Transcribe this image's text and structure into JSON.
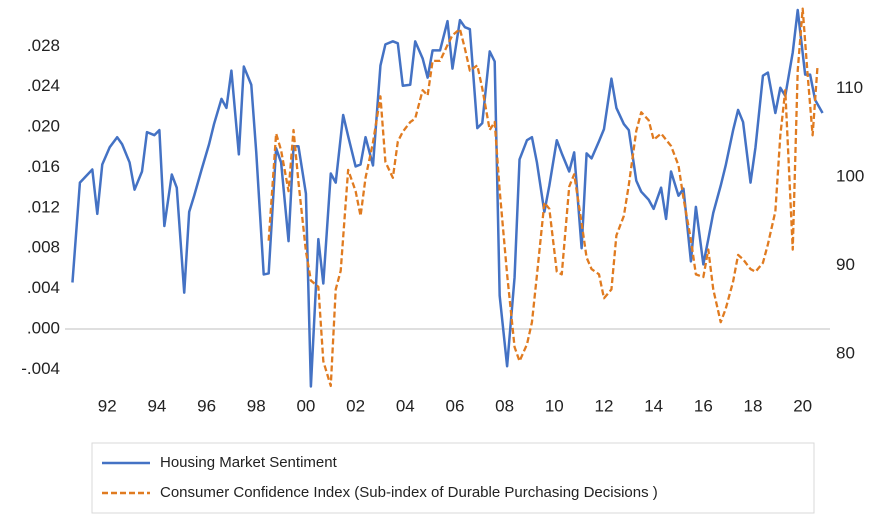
{
  "chart_data": {
    "type": "line",
    "xlim": [
      1990.3,
      2021.1
    ],
    "xticks": [
      {
        "value": 1992,
        "label": "92"
      },
      {
        "value": 1994,
        "label": "94"
      },
      {
        "value": 1996,
        "label": "96"
      },
      {
        "value": 1998,
        "label": "98"
      },
      {
        "value": 2000,
        "label": "00"
      },
      {
        "value": 2002,
        "label": "02"
      },
      {
        "value": 2004,
        "label": "04"
      },
      {
        "value": 2006,
        "label": "06"
      },
      {
        "value": 2008,
        "label": "08"
      },
      {
        "value": 2010,
        "label": "10"
      },
      {
        "value": 2012,
        "label": "12"
      },
      {
        "value": 2014,
        "label": "14"
      },
      {
        "value": 2016,
        "label": "16"
      },
      {
        "value": 2018,
        "label": "18"
      },
      {
        "value": 2020,
        "label": "20"
      }
    ],
    "ylim": [
      -0.006,
      0.032
    ],
    "yticks": [
      {
        "value": -0.004,
        "label": "-.004"
      },
      {
        "value": 0,
        "label": ".000"
      },
      {
        "value": 0.004,
        "label": ".004"
      },
      {
        "value": 0.008,
        "label": ".008"
      },
      {
        "value": 0.012,
        "label": ".012"
      },
      {
        "value": 0.016,
        "label": ".016"
      },
      {
        "value": 0.02,
        "label": ".020"
      },
      {
        "value": 0.024,
        "label": ".024"
      },
      {
        "value": 0.028,
        "label": ".028"
      }
    ],
    "y2lim": [
      76,
      119.3
    ],
    "y2ticks": [
      80,
      90,
      100,
      110
    ],
    "grid": false,
    "legend": "bottom",
    "series": [
      {
        "name": "Housing Market Sentiment",
        "color": "#4472c4",
        "style": "solid",
        "x": [
          1990.6,
          1990.9,
          1991.4,
          1991.6,
          1991.8,
          1992.1,
          1992.4,
          1992.6,
          1992.9,
          1993.1,
          1993.4,
          1993.6,
          1993.9,
          1994.1,
          1994.3,
          1994.6,
          1994.8,
          1995.1,
          1995.3,
          1995.5,
          1995.8,
          1996.1,
          1996.3,
          1996.6,
          1996.8,
          1997.0,
          1997.3,
          1997.5,
          1997.8,
          1998.0,
          1998.3,
          1998.5,
          1998.8,
          1999.0,
          1999.3,
          1999.5,
          1999.7,
          2000.0,
          2000.2,
          2000.5,
          2000.7,
          2001.0,
          2001.2,
          2001.5,
          2001.7,
          2002.0,
          2002.2,
          2002.4,
          2002.7,
          2003.0,
          2003.2,
          2003.5,
          2003.7,
          2003.9,
          2004.2,
          2004.4,
          2004.7,
          2004.9,
          2005.1,
          2005.4,
          2005.7,
          2005.9,
          2006.2,
          2006.4,
          2006.6,
          2006.9,
          2007.1,
          2007.4,
          2007.6,
          2007.8,
          2008.1,
          2008.4,
          2008.6,
          2008.9,
          2009.1,
          2009.3,
          2009.6,
          2009.8,
          2010.1,
          2010.3,
          2010.6,
          2010.8,
          2011.1,
          2011.3,
          2011.5,
          2011.8,
          2012.0,
          2012.3,
          2012.5,
          2012.8,
          2013.0,
          2013.3,
          2013.5,
          2013.8,
          2014.0,
          2014.3,
          2014.5,
          2014.7,
          2015.0,
          2015.2,
          2015.5,
          2015.7,
          2016.0,
          2016.2,
          2016.4,
          2016.7,
          2016.9,
          2017.2,
          2017.4,
          2017.6,
          2017.9,
          2018.1,
          2018.4,
          2018.6,
          2018.9,
          2019.1,
          2019.3,
          2019.6,
          2019.8,
          2020.1,
          2020.3,
          2020.5,
          2020.8
        ],
        "values": [
          0.0046,
          0.0145,
          0.0158,
          0.0114,
          0.0163,
          0.018,
          0.019,
          0.0183,
          0.0165,
          0.0138,
          0.0156,
          0.0195,
          0.0192,
          0.0197,
          0.0102,
          0.0153,
          0.014,
          0.0036,
          0.0116,
          0.0132,
          0.0158,
          0.0183,
          0.0203,
          0.0228,
          0.0219,
          0.0256,
          0.0173,
          0.026,
          0.0242,
          0.0175,
          0.0054,
          0.0055,
          0.0179,
          0.0165,
          0.0087,
          0.0181,
          0.0181,
          0.0134,
          -0.0057,
          0.0089,
          0.0045,
          0.0154,
          0.0145,
          0.0212,
          0.0191,
          0.0161,
          0.0163,
          0.019,
          0.0162,
          0.0261,
          0.0282,
          0.0285,
          0.0283,
          0.0241,
          0.0242,
          0.0285,
          0.0268,
          0.0249,
          0.0276,
          0.0276,
          0.0305,
          0.0258,
          0.0306,
          0.0299,
          0.0297,
          0.0199,
          0.0204,
          0.0275,
          0.0265,
          0.0033,
          -0.0037,
          0.0051,
          0.0168,
          0.0187,
          0.019,
          0.0165,
          0.0116,
          0.0142,
          0.0187,
          0.0174,
          0.0156,
          0.0175,
          0.008,
          0.0174,
          0.0169,
          0.0186,
          0.0198,
          0.0248,
          0.0219,
          0.0203,
          0.0197,
          0.0147,
          0.0136,
          0.0128,
          0.0119,
          0.014,
          0.0109,
          0.0156,
          0.0132,
          0.0139,
          0.0067,
          0.0121,
          0.0064,
          0.0089,
          0.0115,
          0.0142,
          0.0162,
          0.0197,
          0.0217,
          0.0205,
          0.0145,
          0.018,
          0.0251,
          0.0254,
          0.0214,
          0.0239,
          0.0231,
          0.0274,
          0.0316,
          0.0252,
          0.0252,
          0.0227,
          0.0214
        ]
      },
      {
        "name": "Consumer Confidence Index (Sub-index of Durable Purchasing Decisions )",
        "color": "#e07b20",
        "style": "dashed",
        "axis": "y2",
        "x": [
          1998.5,
          1998.8,
          1999.0,
          1999.3,
          1999.5,
          1999.7,
          2000.0,
          2000.2,
          2000.5,
          2000.7,
          2001.0,
          2001.2,
          2001.4,
          2001.7,
          2002.0,
          2002.2,
          2002.4,
          2002.7,
          2003.0,
          2003.2,
          2003.5,
          2003.7,
          2003.9,
          2004.2,
          2004.4,
          2004.7,
          2004.9,
          2005.1,
          2005.4,
          2005.7,
          2005.9,
          2006.2,
          2006.4,
          2006.6,
          2006.9,
          2007.1,
          2007.4,
          2007.6,
          2007.8,
          2008.1,
          2008.4,
          2008.6,
          2008.9,
          2009.1,
          2009.3,
          2009.6,
          2009.8,
          2010.1,
          2010.3,
          2010.6,
          2010.8,
          2011.1,
          2011.3,
          2011.5,
          2011.8,
          2012.0,
          2012.3,
          2012.5,
          2012.8,
          2013.0,
          2013.3,
          2013.5,
          2013.8,
          2014.0,
          2014.3,
          2014.5,
          2014.7,
          2015.0,
          2015.2,
          2015.5,
          2015.7,
          2016.0,
          2016.2,
          2016.4,
          2016.7,
          2016.9,
          2017.2,
          2017.4,
          2017.6,
          2017.9,
          2018.1,
          2018.4,
          2018.6,
          2018.9,
          2019.1,
          2019.3,
          2019.6,
          2019.8,
          2020.0,
          2020.2,
          2020.4,
          2020.6
        ],
        "values": [
          92.8,
          104.9,
          103.0,
          98.4,
          105.3,
          99.4,
          91.6,
          88.3,
          87.6,
          79.2,
          76.4,
          87.3,
          89.4,
          100.8,
          98.4,
          95.6,
          99.9,
          103.9,
          109.1,
          101.7,
          99.9,
          104.0,
          105.1,
          106.2,
          106.6,
          109.8,
          109.2,
          113.1,
          113.1,
          114.9,
          116.0,
          116.7,
          114.5,
          112.0,
          112.6,
          110.0,
          105.3,
          106.2,
          98.5,
          89.0,
          80.8,
          79.2,
          81.1,
          83.6,
          88.9,
          97.1,
          96.4,
          89.3,
          89.0,
          98.9,
          100.3,
          94.8,
          90.9,
          89.6,
          89.0,
          86.3,
          87.3,
          93.4,
          95.6,
          99.1,
          105.2,
          107.3,
          106.4,
          104.2,
          104.9,
          104.2,
          103.5,
          101.3,
          97.6,
          92.9,
          89.0,
          88.7,
          91.8,
          87.3,
          83.6,
          85.1,
          88.2,
          91.2,
          90.7,
          89.6,
          89.3,
          90.3,
          92.4,
          96.1,
          104.7,
          109.8,
          91.8,
          112.0,
          119.0,
          111.5,
          104.7,
          112.6
        ]
      }
    ]
  }
}
